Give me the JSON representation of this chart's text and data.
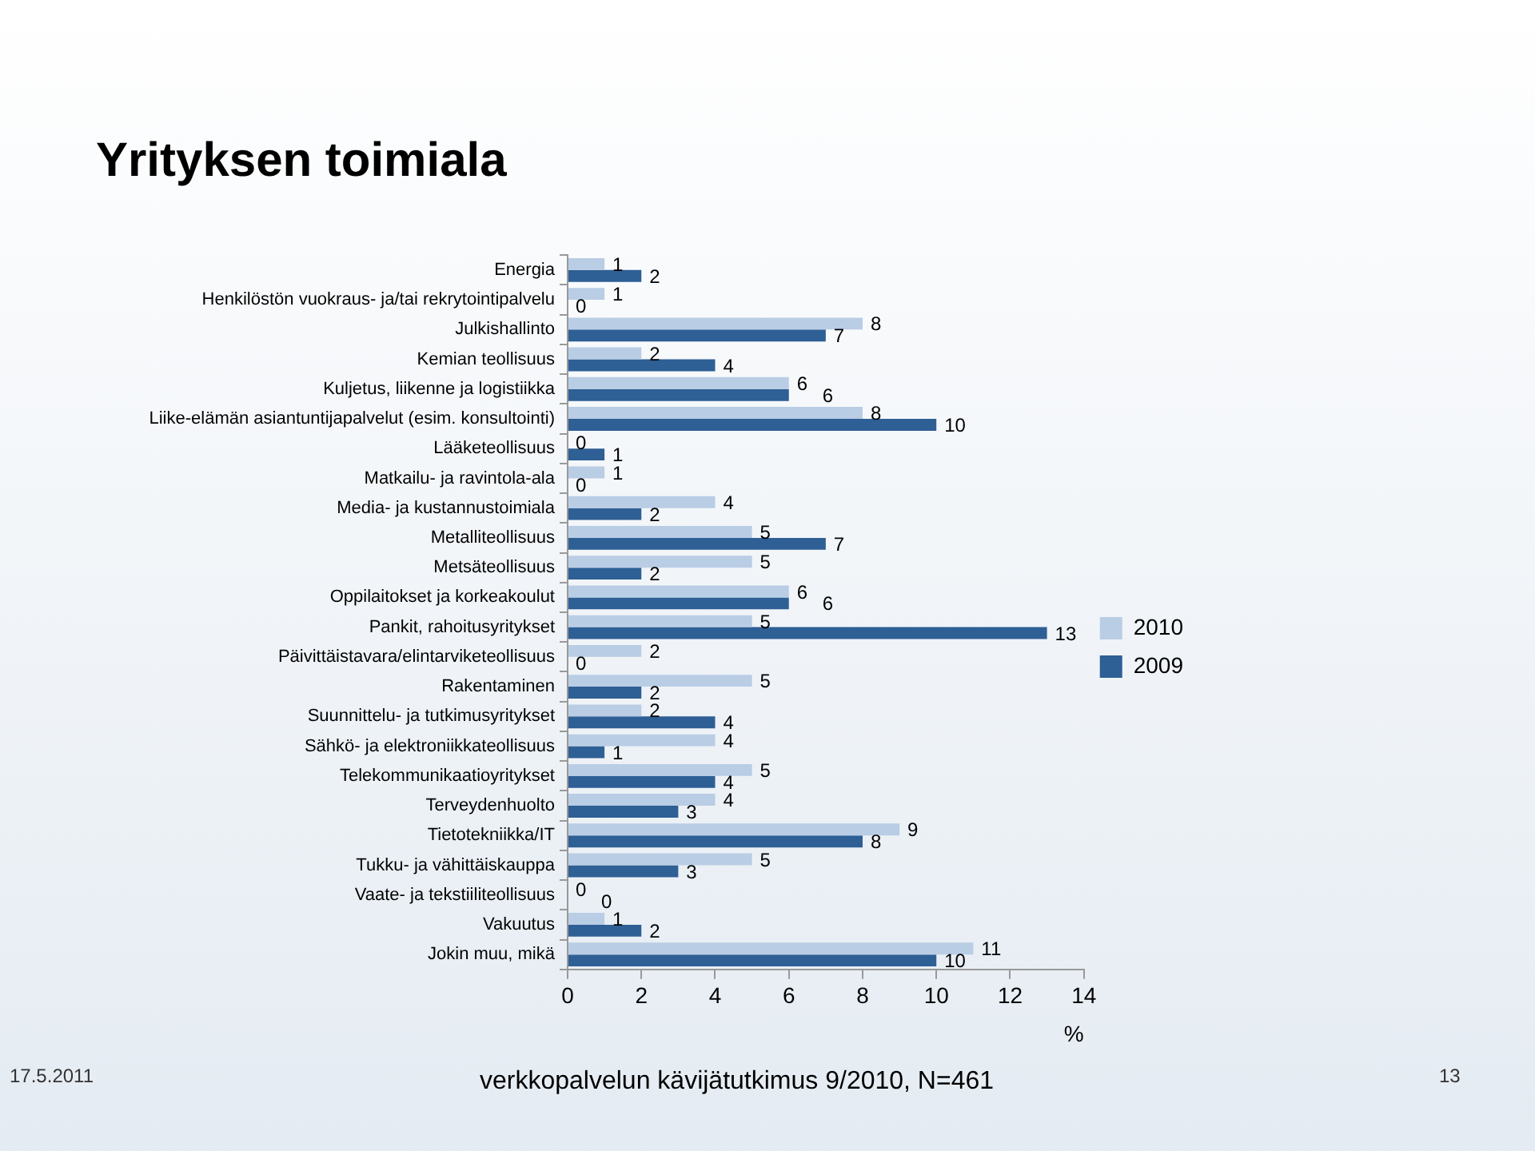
{
  "chart_data": {
    "type": "bar",
    "orientation": "horizontal",
    "title": "Yrityksen toimiala",
    "xlabel": "%",
    "categories": [
      "Energia",
      "Henkilöstön vuokraus- ja/tai rekrytointipalvelu",
      "Julkishallinto",
      "Kemian teollisuus",
      "Kuljetus, liikenne ja logistiikka",
      "Liike-elämän asiantuntijapalvelut (esim. konsultointi)",
      "Lääketeollisuus",
      "Matkailu- ja ravintola-ala",
      "Media- ja kustannustoimiala",
      "Metalliteollisuus",
      "Metsäteollisuus",
      "Oppilaitokset ja korkeakoulut",
      "Pankit, rahoitusyritykset",
      "Päivittäistavara/elintarviketeollisuus",
      "Rakentaminen",
      "Suunnittelu- ja tutkimusyritykset",
      "Sähkö- ja elektroniikkateollisuus",
      "Telekommunikaatioyritykset",
      "Terveydenhuolto",
      "Tietotekniikka/IT",
      "Tukku- ja vähittäiskauppa",
      "Vaate- ja tekstiiliteollisuus",
      "Vakuutus",
      "Jokin muu, mikä"
    ],
    "series": [
      {
        "name": "2010",
        "color": "#b9cde5",
        "values": [
          1,
          1,
          8,
          2,
          6,
          8,
          0,
          1,
          4,
          5,
          5,
          6,
          5,
          2,
          5,
          2,
          4,
          5,
          4,
          9,
          5,
          0,
          1,
          11
        ]
      },
      {
        "name": "2009",
        "color": "#2e5f95",
        "values": [
          2,
          0,
          7,
          4,
          6,
          10,
          1,
          0,
          2,
          7,
          2,
          6,
          13,
          0,
          2,
          4,
          1,
          4,
          3,
          8,
          3,
          0,
          2,
          10
        ]
      }
    ],
    "xlim": [
      0,
      14
    ],
    "xticks": [
      0,
      2,
      4,
      6,
      8,
      10,
      12,
      14
    ],
    "data_labels": true,
    "grid": false,
    "legend": "right",
    "annotations": [
      "17.5.2011",
      "verkkopalvelun kävijätutkimus 9/2010, N=461",
      "13"
    ]
  }
}
